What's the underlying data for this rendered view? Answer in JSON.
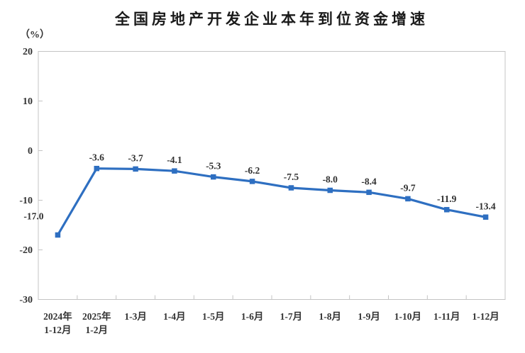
{
  "page": {
    "background_color": "#ffffff"
  },
  "header": {
    "title": "全国房地产开发企业本年到位资金增速",
    "unit_label": "（%）"
  },
  "chart_data": {
    "type": "line",
    "title": "全国房地产开发企业本年到位资金增速",
    "ylabel": "（%）",
    "xlabel": "",
    "categories": [
      "2024年\n1-12月",
      "2025年\n1-2月",
      "1-3月",
      "1-4月",
      "1-5月",
      "1-6月",
      "1-7月",
      "1-8月",
      "1-9月",
      "1-10月",
      "1-11月",
      "1-12月"
    ],
    "series": [
      {
        "name": "本年到位资金增速",
        "values": [
          -17.0,
          -3.6,
          -3.7,
          -4.1,
          -5.3,
          -6.2,
          -7.5,
          -8.0,
          -8.4,
          -9.7,
          -11.9,
          -13.4
        ],
        "point_labels": [
          "-17.0",
          "-3.6",
          "-3.7",
          "-4.1",
          "-5.3",
          "-6.2",
          "-7.5",
          "-8.0",
          "-8.4",
          "-9.7",
          "-11.9",
          "-13.4"
        ]
      }
    ],
    "ylim": [
      -30,
      20
    ],
    "yticks": [
      20,
      10,
      0,
      -10,
      -20,
      -30
    ],
    "grid": false,
    "legend_position": "none",
    "marker_shape": "square",
    "colors": {
      "line": "#2E6FC1",
      "marker": "#2E6FC1",
      "axis": "#C4C4C4",
      "tick": "#C4C4C4",
      "label_text": "#303030",
      "axis_text": "#333333",
      "title_text": "#1a1a1a"
    }
  }
}
